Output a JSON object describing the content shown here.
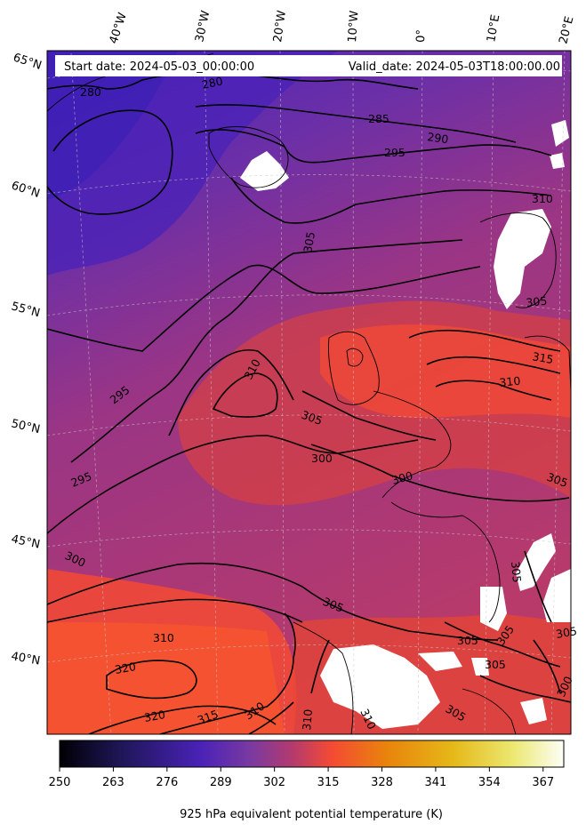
{
  "header": {
    "start_date": "Start date: 2024-05-03_00:00:00",
    "valid_date": "Valid_date: 2024-05-03T18:00:00.00"
  },
  "longitude_labels": [
    "40°W",
    "30°W",
    "20°W",
    "10°W",
    "0°",
    "10°E",
    "20°E"
  ],
  "latitude_labels": [
    "65°N",
    "60°N",
    "55°N",
    "50°N",
    "45°N",
    "40°N"
  ],
  "contour_labels": [
    "280",
    "280",
    "285",
    "290",
    "295",
    "305",
    "310",
    "310",
    "295",
    "315",
    "310",
    "305",
    "305",
    "300",
    "300",
    "305",
    "295",
    "300",
    "305",
    "305",
    "305",
    "310",
    "305",
    "320",
    "320",
    "315",
    "310",
    "310",
    "310",
    "305",
    "305",
    "300",
    "305"
  ],
  "colorbar": {
    "ticks": [
      "250",
      "263",
      "276",
      "289",
      "302",
      "315",
      "328",
      "341",
      "354",
      "367"
    ],
    "label": "925 hPa equivalent potential temperature (K)",
    "colors": [
      "#000004",
      "#1e1656",
      "#4a22b8",
      "#7a3aa0",
      "#b23a6f",
      "#f44a34",
      "#e9840c",
      "#e5b818",
      "#ece872",
      "#fcfff6"
    ]
  }
}
